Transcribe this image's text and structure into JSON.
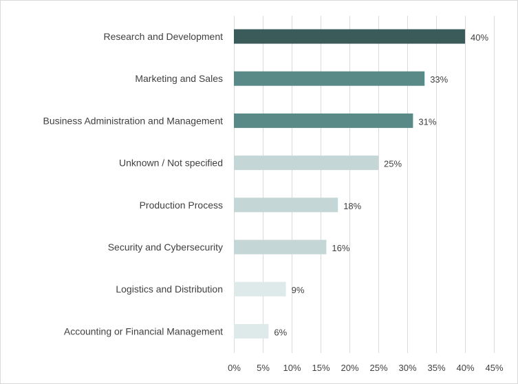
{
  "chart_data": {
    "type": "bar",
    "orientation": "horizontal",
    "title": "",
    "xlabel": "",
    "ylabel": "",
    "xlim": [
      0,
      45
    ],
    "tick_step": 5,
    "ticks": [
      "0%",
      "5%",
      "10%",
      "15%",
      "20%",
      "25%",
      "30%",
      "35%",
      "40%",
      "45%"
    ],
    "grid": true,
    "categories": [
      "Research and Development",
      "Marketing and Sales",
      "Business Administration and Management",
      "Unknown / Not specified",
      "Production Process",
      "Security and Cybersecurity",
      "Logistics and Distribution",
      "Accounting or Financial Management"
    ],
    "values": [
      40,
      33,
      31,
      25,
      18,
      16,
      9,
      6
    ],
    "value_labels": [
      "40%",
      "33%",
      "31%",
      "25%",
      "18%",
      "16%",
      "9%",
      "6%"
    ],
    "colors": [
      "#3b5b5b",
      "#5a8a87",
      "#5a8a87",
      "#c4d6d6",
      "#c4d6d6",
      "#c4d6d6",
      "#deeaea",
      "#deeaea"
    ]
  }
}
